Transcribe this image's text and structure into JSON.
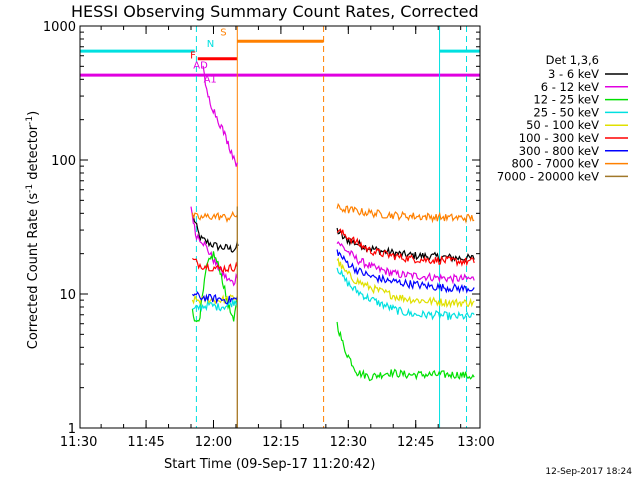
{
  "chart_data": {
    "type": "line",
    "title": "HESSI Observing Summary Count Rates, Corrected",
    "xlabel": "Start Time (09-Sep-17 11:20:42)",
    "ylabel": "Corrected Count Rate (s",
    "ylabel_sup1": "-1",
    "ylabel_mid": " detector",
    "ylabel_sup2": "-1",
    "ylabel_end": ")",
    "y_scale": "log",
    "ylim": [
      1,
      1000
    ],
    "y_ticks": [
      {
        "value": 1,
        "label": "1"
      },
      {
        "value": 10,
        "label": "10"
      },
      {
        "value": 100,
        "label": "100"
      },
      {
        "value": 1000,
        "label": "1000"
      }
    ],
    "xlim_minutes": [
      11.3,
      100.3
    ],
    "x_ticks": [
      {
        "value": 11.0,
        "label": "11:30"
      },
      {
        "value": 26.0,
        "label": "11:45"
      },
      {
        "value": 41.0,
        "label": "12:00"
      },
      {
        "value": 56.0,
        "label": "12:15"
      },
      {
        "value": 71.0,
        "label": "12:30"
      },
      {
        "value": 86.0,
        "label": "12:45"
      },
      {
        "value": 101.0,
        "label": "13:00"
      }
    ],
    "legend_title": "Det 1,3,6",
    "legend_position": "right",
    "timestamp": "12-Sep-2017 18:24",
    "series": [
      {
        "name": "3 - 6 keV",
        "color": "#000000",
        "segments": [
          [
            [
              36.5,
              38.0
            ],
            [
              38.0,
              26.0
            ],
            [
              40.0,
              24.0
            ],
            [
              42.0,
              22.5
            ],
            [
              44.0,
              22.0
            ],
            [
              45.5,
              21.5
            ],
            [
              46.5,
              23.0
            ]
          ],
          [
            [
              68.5,
              30.0
            ],
            [
              70.0,
              26.0
            ],
            [
              74.0,
              23.0
            ],
            [
              78.0,
              21.0
            ],
            [
              84.0,
              19.5
            ],
            [
              90.0,
              19.0
            ],
            [
              96.0,
              18.5
            ],
            [
              99.0,
              18.5
            ]
          ]
        ]
      },
      {
        "name": "6 - 12 keV",
        "color": "#e000e0",
        "segments": [
          [
            [
              36.0,
              45.0
            ],
            [
              37.0,
              28.0
            ],
            [
              38.5,
              25.0
            ],
            [
              39.5,
              22.0
            ],
            [
              41.0,
              18.0
            ],
            [
              42.5,
              15.0
            ],
            [
              44.0,
              13.0
            ],
            [
              45.5,
              12.0
            ],
            [
              46.3,
              14.0
            ]
          ],
          [
            [
              68.5,
              25.0
            ],
            [
              70.0,
              22.0
            ],
            [
              73.0,
              18.0
            ],
            [
              77.0,
              15.5
            ],
            [
              82.0,
              14.0
            ],
            [
              88.0,
              13.5
            ],
            [
              94.0,
              13.0
            ],
            [
              99.0,
              13.0
            ]
          ]
        ]
      },
      {
        "name": "12 - 25 keV",
        "color": "#00e000",
        "segments": [
          [
            [
              36.3,
              8.0
            ],
            [
              37.0,
              6.0
            ],
            [
              38.0,
              7.0
            ],
            [
              39.5,
              16.0
            ],
            [
              41.0,
              20.0
            ],
            [
              42.5,
              15.0
            ],
            [
              44.0,
              9.0
            ],
            [
              45.5,
              6.0
            ],
            [
              46.3,
              10.0
            ]
          ],
          [
            [
              68.5,
              6.0
            ],
            [
              70.0,
              4.0
            ],
            [
              71.5,
              3.2
            ],
            [
              73.0,
              2.6
            ],
            [
              76.0,
              2.4
            ],
            [
              80.0,
              2.6
            ],
            [
              84.0,
              2.5
            ],
            [
              88.0,
              2.5
            ],
            [
              92.0,
              2.5
            ],
            [
              96.0,
              2.5
            ],
            [
              99.0,
              2.4
            ]
          ]
        ]
      },
      {
        "name": "25 - 50 keV",
        "color": "#00e0e0",
        "segments": [
          [
            [
              36.3,
              7.5
            ],
            [
              38.0,
              8.0
            ],
            [
              40.0,
              8.3
            ],
            [
              42.0,
              8.0
            ],
            [
              44.0,
              8.2
            ],
            [
              46.3,
              9.0
            ]
          ],
          [
            [
              68.5,
              16.0
            ],
            [
              70.0,
              13.0
            ],
            [
              72.0,
              11.0
            ],
            [
              75.0,
              9.5
            ],
            [
              78.0,
              8.5
            ],
            [
              82.0,
              7.5
            ],
            [
              86.0,
              7.0
            ],
            [
              90.0,
              7.0
            ],
            [
              94.0,
              6.8
            ],
            [
              99.0,
              6.8
            ]
          ]
        ]
      },
      {
        "name": "50 - 100 keV",
        "color": "#e0e000",
        "segments": [
          [
            [
              36.3,
              9.0
            ],
            [
              38.0,
              9.0
            ],
            [
              40.0,
              9.2
            ],
            [
              42.0,
              9.0
            ],
            [
              44.0,
              9.1
            ],
            [
              46.3,
              9.5
            ]
          ],
          [
            [
              68.5,
              18.0
            ],
            [
              70.0,
              15.0
            ],
            [
              72.0,
              13.0
            ],
            [
              75.0,
              11.5
            ],
            [
              78.0,
              10.5
            ],
            [
              82.0,
              9.5
            ],
            [
              86.0,
              9.0
            ],
            [
              90.0,
              8.8
            ],
            [
              94.0,
              8.6
            ],
            [
              99.0,
              8.6
            ]
          ]
        ]
      },
      {
        "name": "100 - 300 keV",
        "color": "#ff0000",
        "segments": [
          [
            [
              36.3,
              18.0
            ],
            [
              38.0,
              16.5
            ],
            [
              40.0,
              16.0
            ],
            [
              42.0,
              15.5
            ],
            [
              44.0,
              15.5
            ],
            [
              46.3,
              16.0
            ]
          ],
          [
            [
              68.5,
              30.0
            ],
            [
              70.0,
              28.0
            ],
            [
              73.0,
              24.0
            ],
            [
              76.0,
              21.0
            ],
            [
              80.0,
              19.5
            ],
            [
              84.0,
              18.5
            ],
            [
              88.0,
              18.0
            ],
            [
              92.0,
              17.8
            ],
            [
              96.0,
              17.5
            ],
            [
              99.0,
              17.5
            ]
          ]
        ]
      },
      {
        "name": "300 - 800 keV",
        "color": "#0000ff",
        "segments": [
          [
            [
              36.3,
              10.0
            ],
            [
              38.0,
              9.5
            ],
            [
              40.0,
              9.3
            ],
            [
              42.0,
              9.2
            ],
            [
              44.0,
              9.0
            ],
            [
              46.3,
              9.2
            ]
          ],
          [
            [
              68.5,
              21.0
            ],
            [
              70.0,
              18.0
            ],
            [
              73.0,
              15.0
            ],
            [
              76.0,
              13.5
            ],
            [
              80.0,
              12.5
            ],
            [
              84.0,
              12.0
            ],
            [
              88.0,
              11.5
            ],
            [
              92.0,
              11.2
            ],
            [
              96.0,
              11.0
            ],
            [
              99.0,
              11.0
            ]
          ]
        ]
      },
      {
        "name": "800 - 7000 keV",
        "color": "#ff8000",
        "segments": [
          [
            [
              36.3,
              38.0
            ],
            [
              38.0,
              37.0
            ],
            [
              40.0,
              38.0
            ],
            [
              42.0,
              38.0
            ],
            [
              44.0,
              37.0
            ],
            [
              46.3,
              39.0
            ]
          ],
          [
            [
              68.5,
              44.0
            ],
            [
              70.0,
              43.0
            ],
            [
              74.0,
              41.0
            ],
            [
              78.0,
              39.5
            ],
            [
              82.0,
              38.5
            ],
            [
              86.0,
              38.0
            ],
            [
              90.0,
              37.5
            ],
            [
              94.0,
              37.0
            ],
            [
              99.0,
              37.0
            ]
          ]
        ]
      },
      {
        "name": "7000 - 20000 keV",
        "color": "#a0782a",
        "segments": [
          [
            [
              46.3,
              1.0
            ],
            [
              46.3,
              45.0
            ]
          ]
        ]
      }
    ],
    "extra_series": [
      {
        "color": "#e000e0",
        "name": "",
        "segments": [
          [
            [
              38.7,
              500.0
            ],
            [
              39.2,
              350.0
            ],
            [
              39.8,
              300.0
            ],
            [
              40.5,
              260.0
            ],
            [
              41.2,
              230.0
            ],
            [
              42.0,
              200.0
            ],
            [
              43.0,
              170.0
            ],
            [
              44.0,
              140.0
            ],
            [
              45.0,
              115.0
            ],
            [
              45.8,
              100.0
            ],
            [
              46.3,
              90.0
            ]
          ]
        ]
      }
    ],
    "flag_bars": [
      {
        "label": "AD",
        "color": "#e000e0",
        "value": 430,
        "x_start": 11.3,
        "x_end": 100.3
      },
      {
        "label": "N",
        "color": "#00e0e0",
        "value": 650,
        "x_start": 11.3,
        "x_end": 36.8
      },
      {
        "label": "N",
        "color": "#00e0e0",
        "value": 650,
        "x_start": 91.3,
        "x_end": 100.3
      },
      {
        "label": "F",
        "color": "#ff0000",
        "value": 570,
        "x_start": 37.5,
        "x_end": 46.3
      },
      {
        "label": "S",
        "color": "#ff8000",
        "value": 770,
        "x_start": 46.3,
        "x_end": 65.5
      }
    ],
    "vertical_lines": [
      {
        "x": 11.3,
        "color": "#00e0e0",
        "style": "solid"
      },
      {
        "x": 37.2,
        "color": "#00e0e0",
        "style": "dashed"
      },
      {
        "x": 46.3,
        "color": "#ff8000",
        "style": "solid"
      },
      {
        "x": 65.5,
        "color": "#ff8000",
        "style": "dashed"
      },
      {
        "x": 91.3,
        "color": "#00e0e0",
        "style": "solid"
      },
      {
        "x": 97.3,
        "color": "#00e0e0",
        "style": "dashed"
      }
    ],
    "markers": [
      {
        "label": "AD",
        "color": "#e000e0",
        "x": 36.5,
        "value": 480
      },
      {
        "label": "A1",
        "color": "#e000e0",
        "x": 38.8,
        "value": 380
      },
      {
        "label": "N",
        "color": "#00e0e0",
        "x": 39.5,
        "value": 700
      },
      {
        "label": "F",
        "color": "#ff0000",
        "x": 35.8,
        "value": 570
      },
      {
        "label": "S",
        "color": "#ff8000",
        "x": 42.5,
        "value": 850
      }
    ]
  }
}
